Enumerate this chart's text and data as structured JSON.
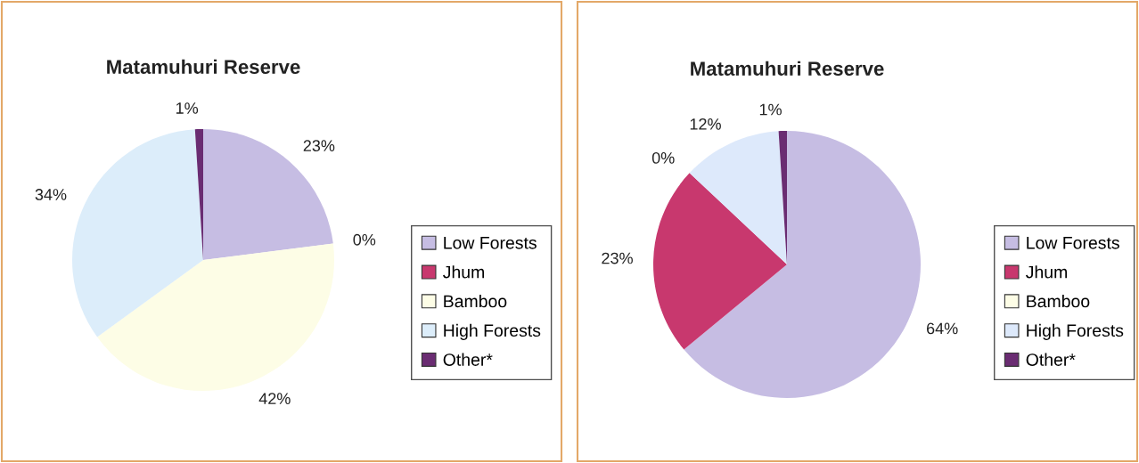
{
  "chart_data": [
    {
      "type": "pie",
      "title": "Matamuhuri Reserve",
      "categories": [
        "Low Forests",
        "Jhum",
        "Bamboo",
        "High Forests",
        "Other*"
      ],
      "values": [
        23,
        0,
        42,
        34,
        1
      ],
      "colors": [
        "#c6bde3",
        "#c8386e",
        "#fdfde6",
        "#dcedfa",
        "#6a2c72"
      ],
      "value_labels": [
        "23%",
        "0%",
        "42%",
        "34%",
        "1%"
      ],
      "legend": "right"
    },
    {
      "type": "pie",
      "title": "Matamuhuri Reserve",
      "categories": [
        "Low Forests",
        "Jhum",
        "Bamboo",
        "High Forests",
        "Other*"
      ],
      "values": [
        64,
        23,
        0,
        12,
        1
      ],
      "colors": [
        "#c6bde3",
        "#c8386e",
        "#fdfde6",
        "#dde9fb",
        "#6a2c72"
      ],
      "value_labels": [
        "64%",
        "23%",
        "0%",
        "12%",
        "1%"
      ],
      "legend": "right"
    }
  ]
}
